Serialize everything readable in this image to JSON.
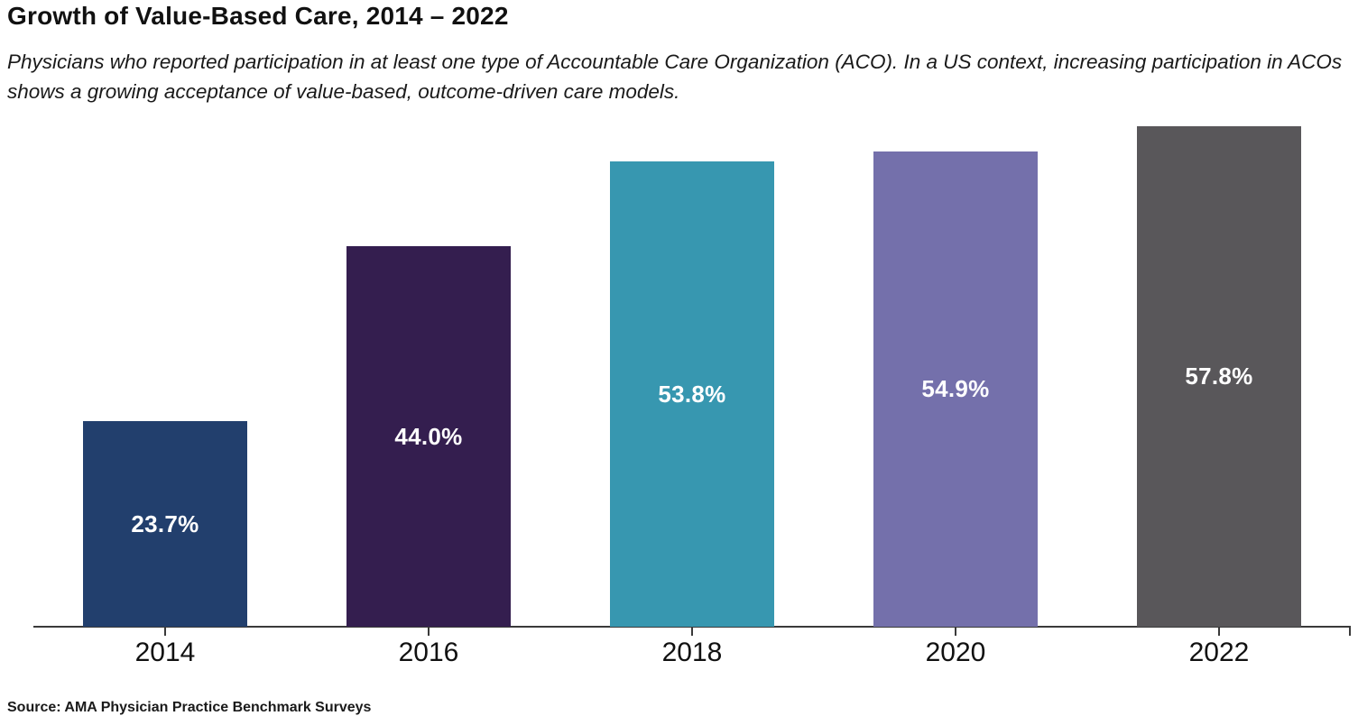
{
  "header": {
    "title": "Growth of Value-Based Care, 2014 – 2022",
    "subtitle": "Physicians who reported participation in at least one type of Accountable Care Organization (ACO). In a US context, increasing participation in ACOs shows a growing acceptance of value-based, outcome-driven care models."
  },
  "footer": {
    "source": "Source: AMA Physician Practice Benchmark Surveys"
  },
  "chart_data": {
    "type": "bar",
    "title": "Growth of Value-Based Care, 2014 – 2022",
    "categories": [
      "2014",
      "2016",
      "2018",
      "2020",
      "2022"
    ],
    "values": [
      23.7,
      44.0,
      53.8,
      54.9,
      57.8
    ],
    "value_labels": [
      "23.7%",
      "44.0%",
      "53.8%",
      "54.9%",
      "57.8%"
    ],
    "bar_colors": [
      "#223f6d",
      "#341e4f",
      "#3797b0",
      "#7470ab",
      "#59575a"
    ],
    "xlabel": "",
    "ylabel": "",
    "ylim": [
      0,
      60
    ],
    "grid": false,
    "legend": false,
    "y_axis_shown": false,
    "label_color": "#ffffff",
    "axis_color": "#3a3a3a",
    "background": "#ffffff"
  }
}
